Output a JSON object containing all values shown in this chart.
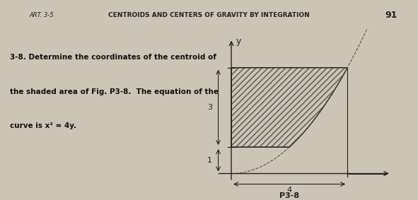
{
  "background_color": "#ccc4b5",
  "title_text": "CENTROIDS AND CENTERS OF GRAVITY BY INTEGRATION",
  "art_text": "ART. 3-5",
  "page_num": "91",
  "problem_text_line1": "3-8. Determine the coordinates of the centroid of",
  "problem_text_line2": "the shaded area of Fig. P3-8.  The equation of the",
  "problem_text_line3": "curve is x² = 4y.",
  "figure_label": "P3-8",
  "dim_3": "3",
  "dim_1": "1",
  "dim_4": "4",
  "y_label": "y",
  "hatch_color": "#555555",
  "axis_color": "#222222",
  "curve_color": "#555555",
  "line_color": "#222222"
}
